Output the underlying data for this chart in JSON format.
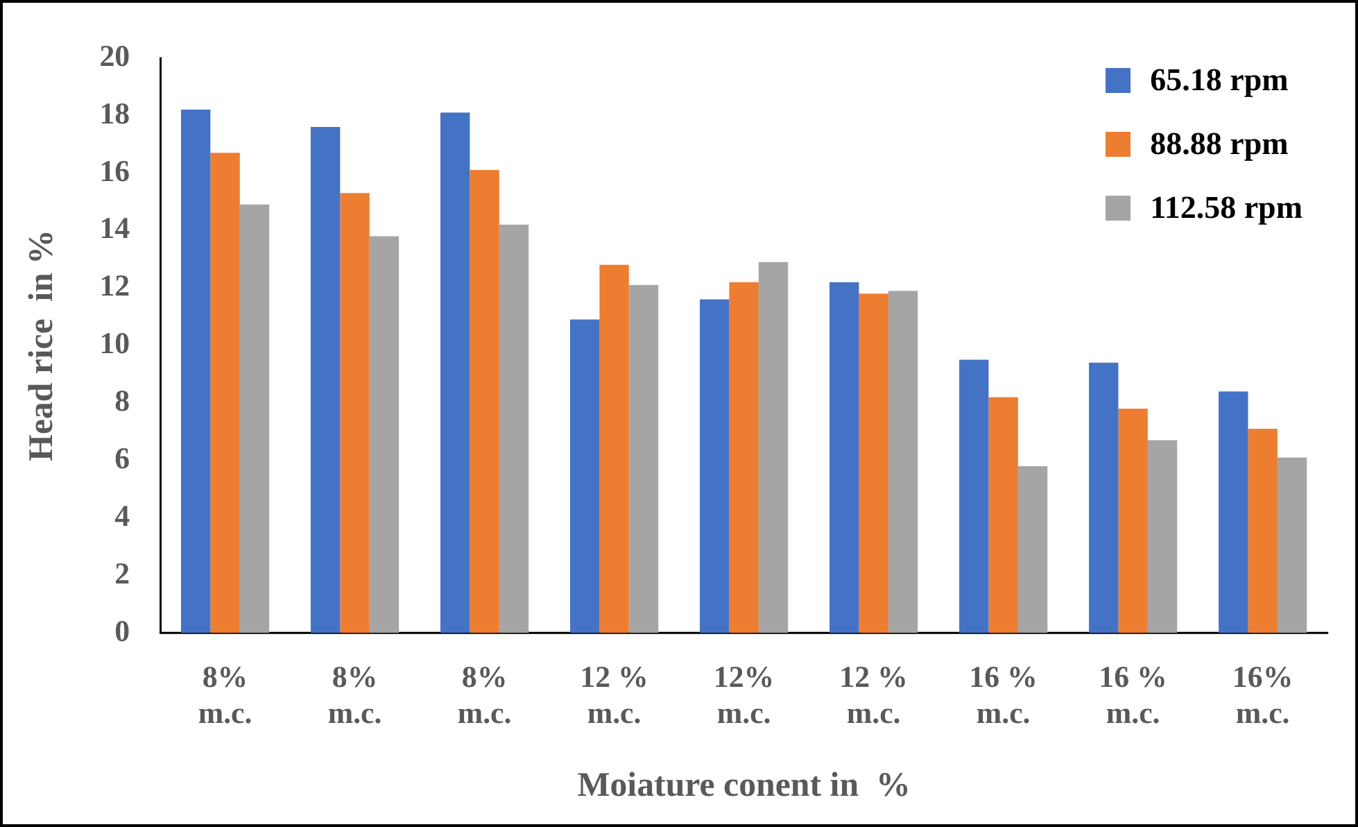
{
  "chart_data": {
    "type": "bar",
    "xlabel": "Moiature conent in  %",
    "ylabel": "Head rice  in %",
    "categories": [
      "8% m.c.",
      "8% m.c.",
      "8% m.c.",
      "12 % m.c.",
      "12% m.c.",
      "12 % m.c.",
      "16 % m.c.",
      "16 % m.c.",
      "16% m.c."
    ],
    "series": [
      {
        "name": "65.18 rpm",
        "color": "#4472c4",
        "values": [
          18.2,
          17.6,
          18.1,
          10.9,
          11.6,
          12.2,
          9.5,
          9.4,
          8.4
        ]
      },
      {
        "name": "88.88 rpm",
        "color": "#ed7d31",
        "values": [
          16.7,
          15.3,
          16.1,
          12.8,
          12.2,
          11.8,
          8.2,
          7.8,
          7.1
        ]
      },
      {
        "name": "112.58 rpm",
        "color": "#a5a5a5",
        "values": [
          14.9,
          13.8,
          14.2,
          12.1,
          12.9,
          11.9,
          5.8,
          6.7,
          6.1
        ]
      }
    ],
    "ylim": [
      0,
      20
    ],
    "yticks": [
      0,
      2,
      4,
      6,
      8,
      10,
      12,
      14,
      16,
      18,
      20
    ],
    "grid": false,
    "legend": "top right"
  }
}
